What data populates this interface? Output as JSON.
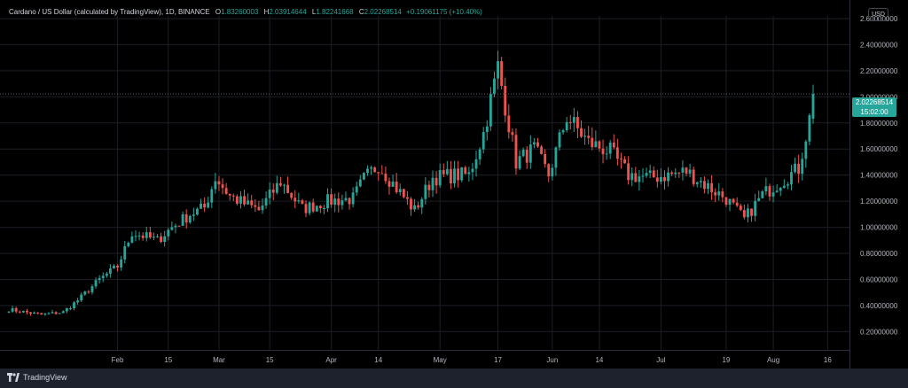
{
  "header": {
    "symbol": "Cardano / US Dollar (calculated by TradingView), 1D, BINANCE",
    "o_label": "O",
    "o_value": "1.83260003",
    "h_label": "H",
    "h_value": "2.03914644",
    "l_label": "L",
    "l_value": "1.82241668",
    "c_label": "C",
    "c_value": "2.02268514",
    "change": "+0.19061175 (+10.40%)"
  },
  "currency_button": "USD",
  "last_price": {
    "value": "2.02268514",
    "countdown": "15:02:00"
  },
  "branding": {
    "name": "TradingView"
  },
  "colors": {
    "up": "#26a69a",
    "down": "#ef5350",
    "background": "#000000",
    "grid": "#1c1f26",
    "axis_text": "#b2b5be"
  },
  "chart_data": {
    "type": "candlestick",
    "title": "Cardano / US Dollar (calculated by TradingView), 1D, BINANCE",
    "ylim": [
      0.06,
      2.62
    ],
    "y_ticks": [
      "2.60000000",
      "2.40000000",
      "2.20000000",
      "2.00000000",
      "1.80000000",
      "1.60000000",
      "1.40000000",
      "1.20000000",
      "1.00000000",
      "0.80000000",
      "0.60000000",
      "0.40000000",
      "0.20000000"
    ],
    "y_tick_values": [
      2.6,
      2.4,
      2.2,
      2.0,
      1.8,
      1.6,
      1.4,
      1.2,
      1.0,
      0.8,
      0.6,
      0.4,
      0.2
    ],
    "x_ticks": [
      {
        "label": "Feb",
        "day": 31
      },
      {
        "label": "15",
        "day": 45
      },
      {
        "label": "Mar",
        "day": 59
      },
      {
        "label": "15",
        "day": 73
      },
      {
        "label": "Apr",
        "day": 90
      },
      {
        "label": "14",
        "day": 103
      },
      {
        "label": "May",
        "day": 120
      },
      {
        "label": "17",
        "day": 136
      },
      {
        "label": "Jun",
        "day": 151
      },
      {
        "label": "14",
        "day": 164
      },
      {
        "label": "Jul",
        "day": 181
      },
      {
        "label": "19",
        "day": 199
      },
      {
        "label": "Aug",
        "day": 212
      },
      {
        "label": "16",
        "day": 227
      }
    ],
    "first_day": 1,
    "last_day": 223,
    "price_line": 2.0227,
    "anchors": [
      [
        1,
        0.37
      ],
      [
        10,
        0.33
      ],
      [
        16,
        0.35
      ],
      [
        20,
        0.44
      ],
      [
        26,
        0.6
      ],
      [
        31,
        0.7
      ],
      [
        35,
        0.96
      ],
      [
        42,
        0.9
      ],
      [
        46,
        1.0
      ],
      [
        51,
        1.1
      ],
      [
        55,
        1.15
      ],
      [
        58,
        1.38
      ],
      [
        62,
        1.24
      ],
      [
        66,
        1.18
      ],
      [
        70,
        1.13
      ],
      [
        76,
        1.35
      ],
      [
        82,
        1.14
      ],
      [
        89,
        1.2
      ],
      [
        96,
        1.22
      ],
      [
        99,
        1.37
      ],
      [
        103,
        1.48
      ],
      [
        108,
        1.3
      ],
      [
        113,
        1.13
      ],
      [
        118,
        1.38
      ],
      [
        124,
        1.4
      ],
      [
        128,
        1.4
      ],
      [
        132,
        1.72
      ],
      [
        136,
        2.23
      ],
      [
        141,
        1.5
      ],
      [
        146,
        1.6
      ],
      [
        150,
        1.4
      ],
      [
        155,
        1.85
      ],
      [
        161,
        1.65
      ],
      [
        167,
        1.58
      ],
      [
        172,
        1.4
      ],
      [
        178,
        1.38
      ],
      [
        183,
        1.4
      ],
      [
        188,
        1.43
      ],
      [
        193,
        1.33
      ],
      [
        199,
        1.22
      ],
      [
        204,
        1.06
      ],
      [
        209,
        1.25
      ],
      [
        214,
        1.35
      ],
      [
        219,
        1.45
      ],
      [
        222,
        1.83
      ],
      [
        223,
        2.02
      ]
    ]
  }
}
